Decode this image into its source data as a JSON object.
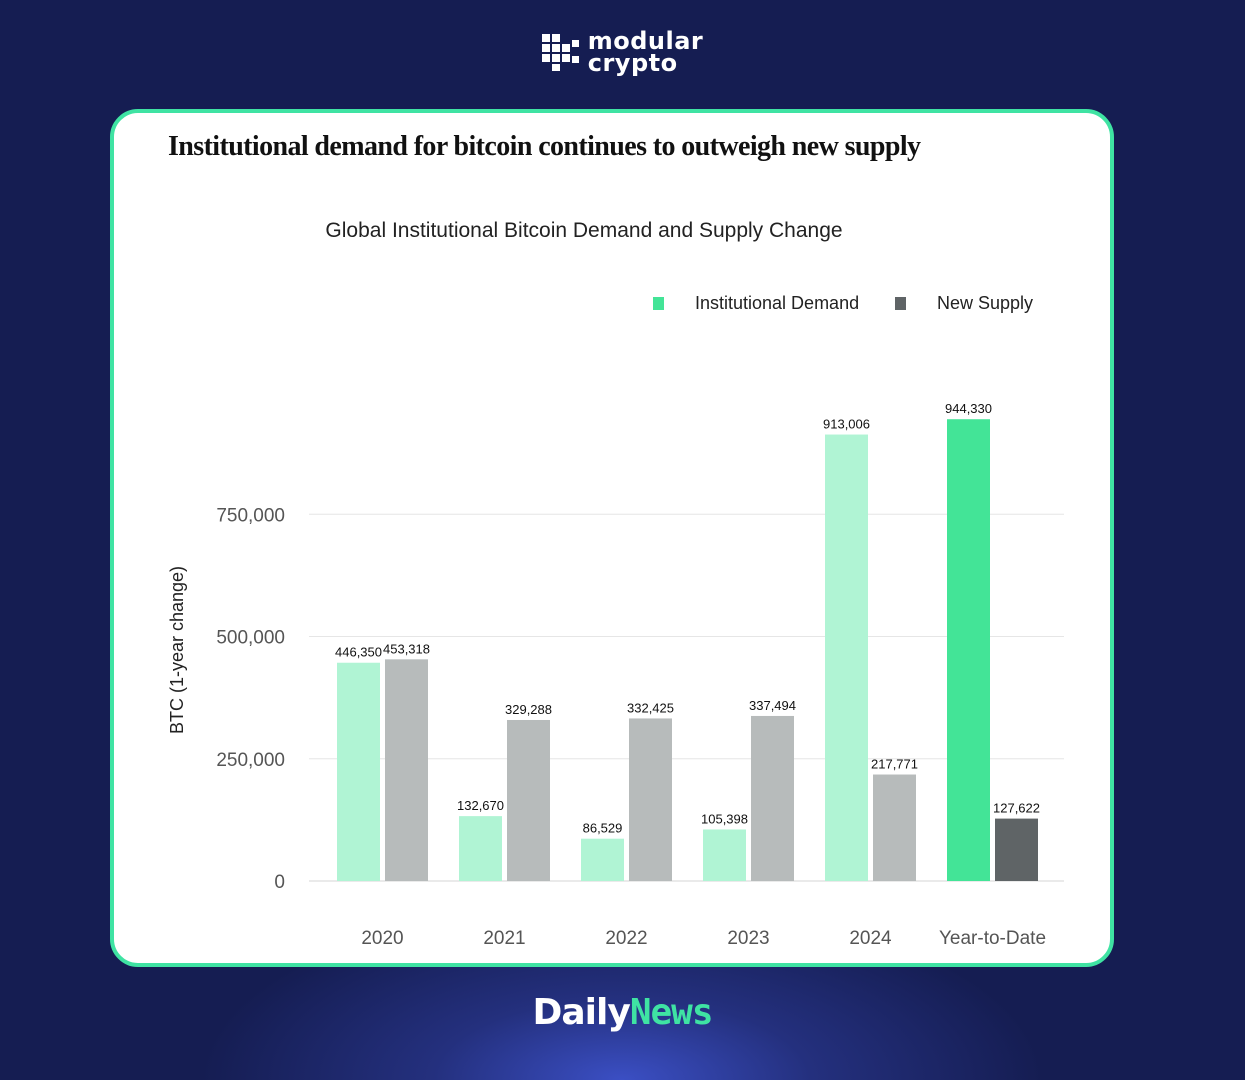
{
  "brand": {
    "line1": "modular",
    "line2": "crypto",
    "logo_icon": "grid-icon"
  },
  "card": {
    "headline": "Institutional demand for bitcoin continues to outweigh new supply"
  },
  "footer": {
    "daily": "Daily",
    "news": "News"
  },
  "colors": {
    "accent": "#3fe3a3",
    "background": "#161e53",
    "demand_light": "#b0f4d4",
    "demand_strong": "#43e497",
    "supply_light": "#b7bbbb",
    "supply_dark": "#5f6466"
  },
  "chart_data": {
    "type": "bar",
    "title": "Global Institutional Bitcoin Demand and Supply Change",
    "xlabel": "",
    "ylabel": "BTC (1-year change)",
    "categories": [
      "2020",
      "2021",
      "2022",
      "2023",
      "2024",
      "Year-to-Date"
    ],
    "series": [
      {
        "name": "Institutional Demand",
        "values": [
          446350,
          132670,
          86529,
          105398,
          913006,
          944330
        ],
        "value_labels": [
          "446,350",
          "132,670",
          "86,529",
          "105,398",
          "913,006",
          "944,330"
        ]
      },
      {
        "name": "New Supply",
        "values": [
          453318,
          329288,
          332425,
          337494,
          217771,
          127622
        ],
        "value_labels": [
          "453,318",
          "329,288",
          "332,425",
          "337,494",
          "217,771",
          "127,622"
        ]
      }
    ],
    "yticks": [
      0,
      250000,
      500000,
      750000
    ],
    "ytick_labels": [
      "0",
      "250,000",
      "500,000",
      "750,000"
    ],
    "ylim": [
      0,
      1000000
    ],
    "grid": true,
    "legend": "top-right",
    "highlight_category": "Year-to-Date"
  }
}
